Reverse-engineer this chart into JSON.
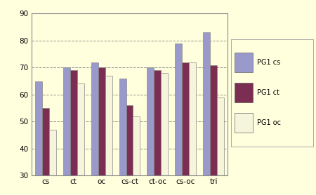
{
  "categories": [
    "cs",
    "ct",
    "oc",
    "cs-ct",
    "ct-oc",
    "cs-oc",
    "tri"
  ],
  "series": {
    "PG1 cs": [
      65,
      70,
      72,
      66,
      70,
      79,
      83
    ],
    "PG1 ct": [
      55,
      69,
      70,
      56,
      69,
      72,
      71
    ],
    "PG1 oc": [
      47,
      64,
      67,
      52,
      68,
      72,
      59
    ]
  },
  "colors": {
    "PG1 cs": "#9999CC",
    "PG1 ct": "#7B2D52",
    "PG1 oc": "#F5F5DC"
  },
  "bar_edge_color": "#888888",
  "ylim": [
    30,
    90
  ],
  "yticks": [
    30,
    40,
    50,
    60,
    70,
    80,
    90
  ],
  "background_color": "#FFFFDD",
  "plot_bg_color": "#FFFFF0",
  "grid_color": "#888888",
  "legend_position": "right"
}
